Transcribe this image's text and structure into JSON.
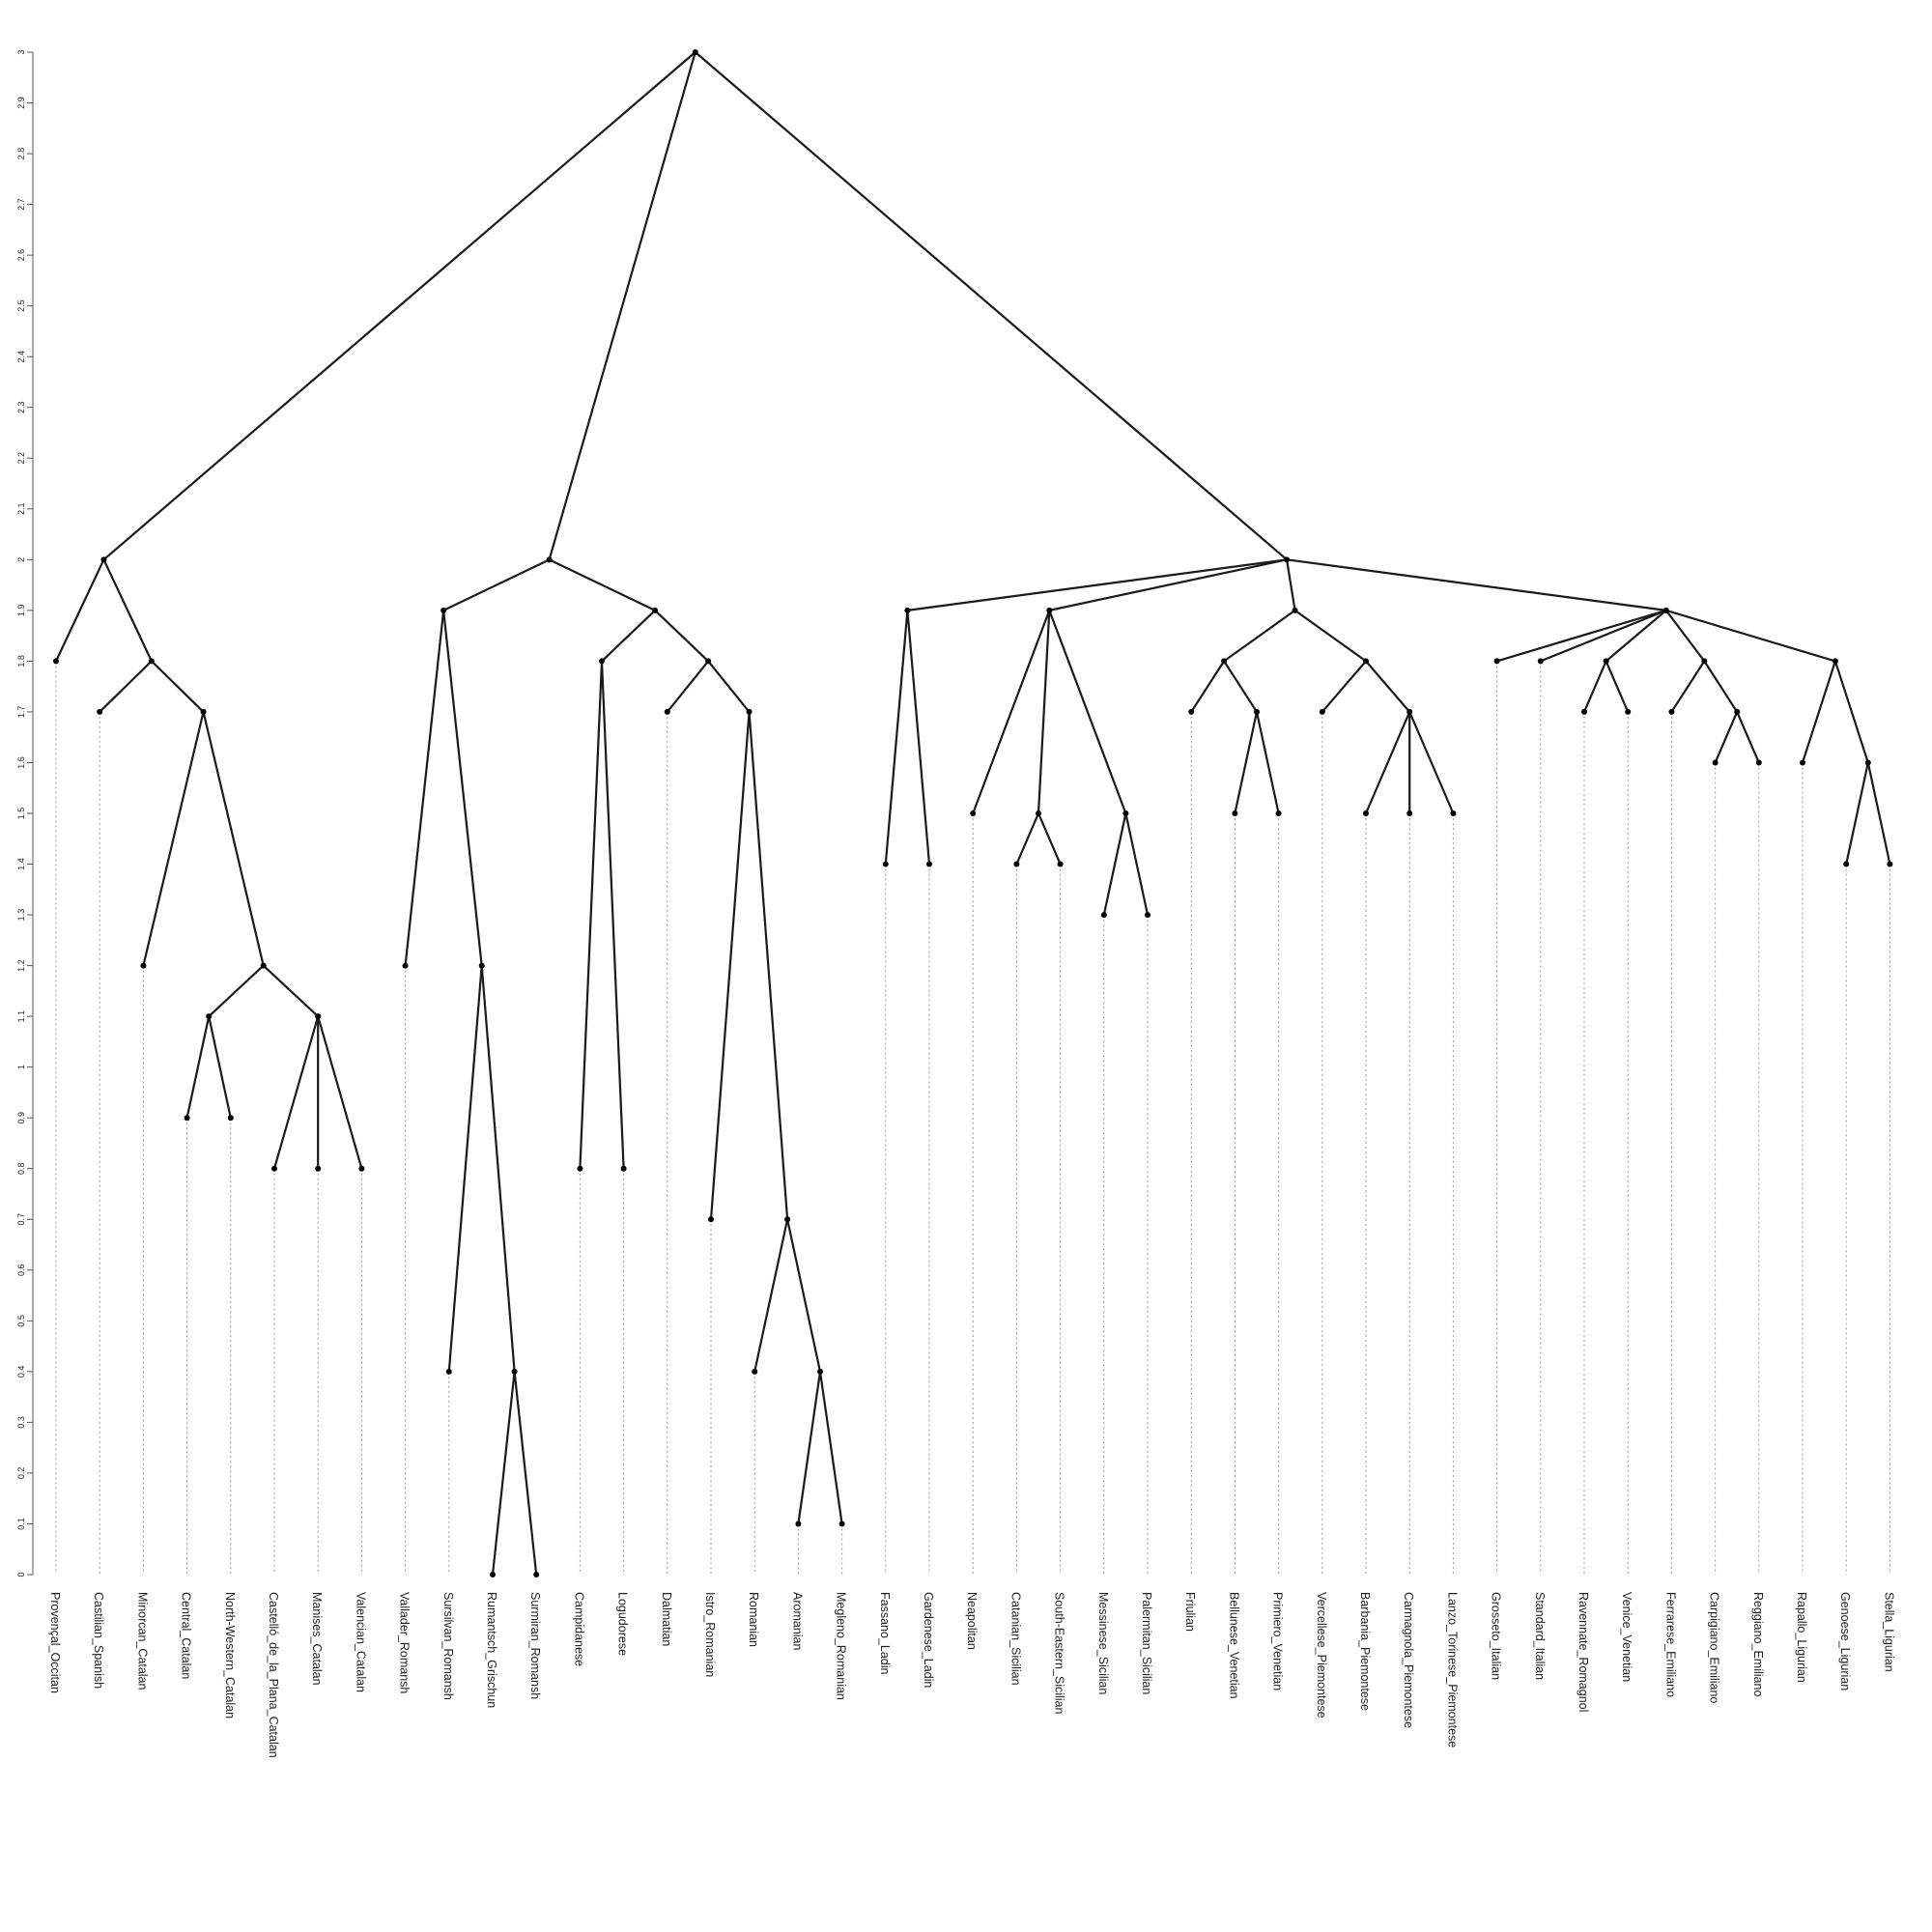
{
  "chart_data": {
    "type": "dendrogram",
    "title": "",
    "xlabel": "",
    "ylabel": "",
    "ylim": [
      0,
      3
    ],
    "y_ticks": [
      "0",
      "0.1",
      "0.2",
      "0.3",
      "0.4",
      "0.5",
      "0.6",
      "0.7",
      "0.8",
      "0.9",
      "1",
      "1.1",
      "1.2",
      "1.3",
      "1.4",
      "1.5",
      "1.6",
      "1.7",
      "1.8",
      "1.9",
      "2",
      "2.1",
      "2.2",
      "2.3",
      "2.4",
      "2.5",
      "2.6",
      "2.7",
      "2.8",
      "2.9",
      "3"
    ],
    "leaves": [
      "Provençal_Occitan",
      "Castilian_Spanish",
      "Minorcan_Catalan",
      "Central_Catalan",
      "North-Western_Catalan",
      "Castelló_de_la_Plana_Catalan",
      "Manises_Catalan",
      "Valencian_Catalan",
      "Vallader_Romansh",
      "Sursilvan_Romansh",
      "Rumantsch_Grischun",
      "Surmiran_Romansh",
      "Campidanese",
      "Logudorese",
      "Dalmatian",
      "Istro_Romanian",
      "Romanian",
      "Aromanian",
      "Megleno_Romanian",
      "Fassano_Ladin",
      "Gardenese_Ladin",
      "Neapolitan",
      "Catanian_Sicilian",
      "South-Eastern_Sicilian",
      "Messinese_Sicilian",
      "Palermitan_Sicilian",
      "Friulian",
      "Bellunese_Venetian",
      "Primiero_Venetian",
      "Vercellese_Piemontese",
      "Barbania_Piemontese",
      "Carmagnola_Piemontese",
      "Lanzo_Torinese_Piemontese",
      "Grosseto_Italian",
      "Standard_Italian",
      "Ravennate_Romagnol",
      "Venice_Venetian",
      "Ferrarese_Emiliano",
      "Carpigiano_Emiliano",
      "Reggiano_Emiliano",
      "Rapallo_Ligurian",
      "Genoese_Ligurian",
      "Stella_Ligurian"
    ],
    "leaf_heights": [
      1.8,
      1.7,
      1.2,
      0.9,
      0.9,
      0.8,
      0.8,
      0.8,
      1.2,
      0.4,
      0,
      0,
      0.8,
      0.8,
      1.7,
      0.7,
      0.4,
      0.1,
      0.1,
      1.4,
      1.4,
      1.5,
      1.4,
      1.4,
      1.3,
      1.3,
      1.7,
      1.5,
      1.5,
      1.7,
      1.5,
      1.5,
      1.5,
      1.8,
      1.8,
      1.7,
      1.7,
      1.7,
      1.6,
      1.6,
      1.6,
      1.4,
      1.4
    ],
    "tree": {
      "h": 3,
      "c": [
        {
          "h": 2,
          "c": [
            0,
            {
              "h": 1.8,
              "c": [
                1,
                {
                  "h": 1.7,
                  "c": [
                    2,
                    {
                      "h": 1.2,
                      "c": [
                        {
                          "h": 1.1,
                          "c": [
                            3,
                            4
                          ]
                        },
                        {
                          "h": 1.1,
                          "c": [
                            5,
                            6,
                            7
                          ]
                        }
                      ]
                    }
                  ]
                }
              ]
            }
          ]
        },
        {
          "h": 2,
          "c": [
            {
              "h": 1.9,
              "c": [
                8,
                {
                  "h": 1.2,
                  "c": [
                    9,
                    {
                      "h": 0.4,
                      "c": [
                        10,
                        11
                      ]
                    }
                  ]
                }
              ]
            },
            {
              "h": 1.9,
              "c": [
                {
                  "h": 1.8,
                  "c": [
                    12,
                    13
                  ]
                },
                {
                  "h": 1.8,
                  "c": [
                    14,
                    {
                      "h": 1.7,
                      "c": [
                        15,
                        {
                          "h": 0.7,
                          "c": [
                            16,
                            {
                              "h": 0.4,
                              "c": [
                                17,
                                18
                              ]
                            }
                          ]
                        }
                      ]
                    }
                  ]
                }
              ]
            }
          ]
        },
        {
          "h": 2,
          "c": [
            {
              "h": 1.9,
              "c": [
                19,
                20
              ]
            },
            {
              "h": 1.9,
              "c": [
                21,
                {
                  "h": 1.5,
                  "c": [
                    22,
                    23
                  ]
                },
                {
                  "h": 1.5,
                  "c": [
                    24,
                    25
                  ]
                }
              ]
            },
            {
              "h": 1.9,
              "c": [
                {
                  "h": 1.8,
                  "c": [
                    26,
                    {
                      "h": 1.7,
                      "c": [
                        27,
                        28
                      ]
                    }
                  ]
                },
                {
                  "h": 1.8,
                  "c": [
                    29,
                    {
                      "h": 1.7,
                      "c": [
                        30,
                        31,
                        32
                      ]
                    }
                  ]
                }
              ]
            },
            {
              "h": 1.9,
              "c": [
                33,
                34,
                {
                  "h": 1.8,
                  "c": [
                    35,
                    36
                  ]
                },
                {
                  "h": 1.8,
                  "c": [
                    37,
                    {
                      "h": 1.7,
                      "c": [
                        38,
                        39
                      ]
                    }
                  ]
                },
                {
                  "h": 1.8,
                  "c": [
                    40,
                    {
                      "h": 1.6,
                      "c": [
                        41,
                        42
                      ]
                    }
                  ]
                }
              ]
            }
          ]
        }
      ]
    }
  },
  "colors": {
    "edge": "#1a1a1a",
    "node": "#000000",
    "guide": "#9a9a9a",
    "text": "#222222"
  }
}
